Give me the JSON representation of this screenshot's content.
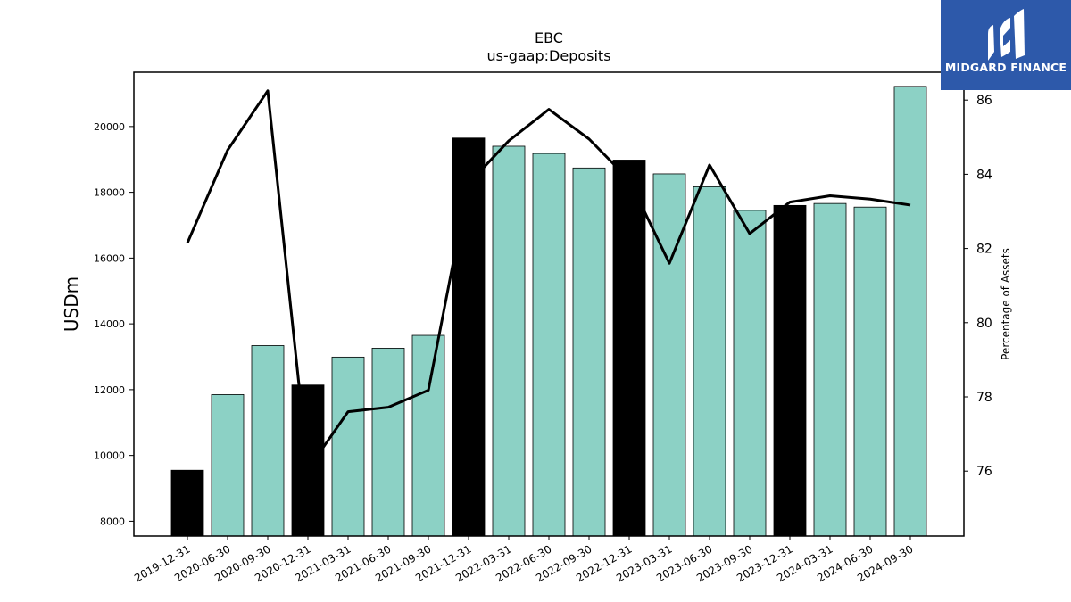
{
  "brand": {
    "name": "MIDGARD FINANCE",
    "bg_color": "#2d59aa",
    "logo_icon": "midgard-m-logo"
  },
  "chart_data": {
    "type": "bar",
    "title": "EBC",
    "subtitle": "us-gaap:Deposits",
    "ylabel": "USDm",
    "y2label": "Percentage of Assets",
    "categories": [
      "2019-12-31",
      "2020-06-30",
      "2020-09-30",
      "2020-12-31",
      "2021-03-31",
      "2021-06-30",
      "2021-09-30",
      "2021-12-31",
      "2022-03-31",
      "2022-06-30",
      "2022-09-30",
      "2022-12-31",
      "2023-03-31",
      "2023-06-30",
      "2023-09-30",
      "2023-12-31",
      "2024-03-31",
      "2024-06-30",
      "2024-09-30"
    ],
    "series": [
      {
        "type": "bar",
        "axis": "left",
        "values": [
          9550,
          11850,
          13340,
          12140,
          12990,
          13260,
          13650,
          19650,
          19400,
          19180,
          18740,
          18980,
          18560,
          18170,
          17450,
          17600,
          17660,
          17550,
          21220
        ],
        "colors": [
          "#000000",
          "#8cd1c5",
          "#8cd1c5",
          "#000000",
          "#8cd1c5",
          "#8cd1c5",
          "#8cd1c5",
          "#000000",
          "#8cd1c5",
          "#8cd1c5",
          "#8cd1c5",
          "#000000",
          "#8cd1c5",
          "#8cd1c5",
          "#8cd1c5",
          "#000000",
          "#8cd1c5",
          "#8cd1c5",
          "#8cd1c5"
        ]
      },
      {
        "type": "line",
        "axis": "right",
        "color": "#000000",
        "values": [
          82.15,
          84.65,
          86.25,
          76.05,
          77.6,
          77.72,
          78.18,
          83.75,
          84.9,
          85.75,
          84.95,
          83.85,
          81.6,
          84.25,
          82.4,
          83.25,
          83.42,
          83.33,
          83.17
        ]
      }
    ],
    "ylim": [
      7550,
      21650
    ],
    "y2lim": [
      74.25,
      86.75
    ],
    "yticks": [
      8000,
      10000,
      12000,
      14000,
      16000,
      18000,
      20000
    ],
    "y2ticks": [
      76,
      78,
      80,
      82,
      84,
      86
    ],
    "grid": false,
    "legend": "none"
  }
}
